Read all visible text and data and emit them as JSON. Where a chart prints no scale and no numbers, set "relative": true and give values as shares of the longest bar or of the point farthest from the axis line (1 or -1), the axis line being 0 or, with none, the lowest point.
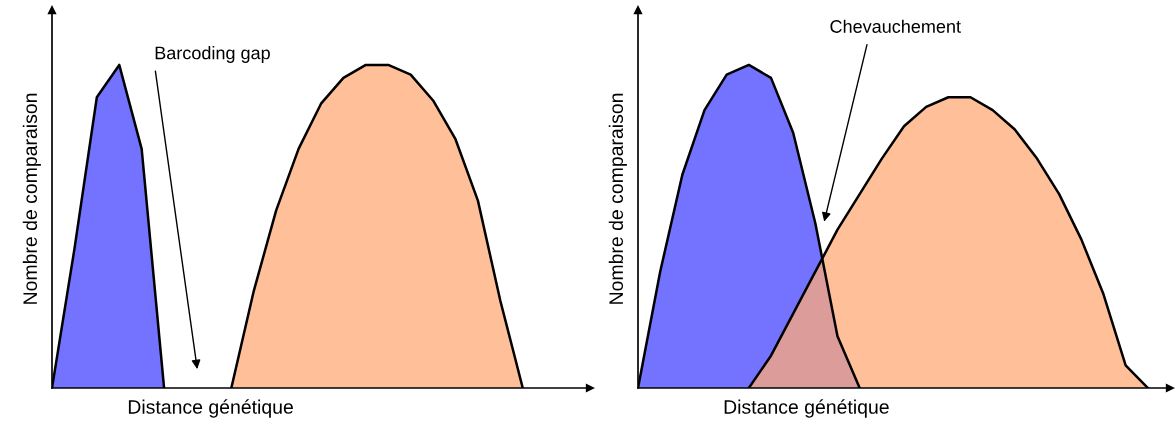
{
  "chart_data": [
    {
      "type": "area",
      "relative": true,
      "xlabel": "Distance génétique",
      "ylabel": "Nombre de comparaison",
      "grid": false,
      "legend": false,
      "categories": [
        null,
        null,
        null,
        null,
        null,
        null,
        null,
        null,
        null,
        null,
        null,
        null,
        null,
        null,
        null,
        null,
        null,
        null,
        null,
        null,
        null,
        null,
        null,
        null,
        null
      ],
      "series": [
        {
          "color": "#7373ff",
          "values": [
            0,
            0.43,
            0.9,
            1.0,
            0.74,
            0,
            null,
            null,
            null,
            null,
            null,
            null,
            null,
            null,
            null,
            null,
            null,
            null,
            null,
            null,
            null,
            null,
            null,
            null,
            null
          ]
        },
        {
          "color": "#ffaa77",
          "values": [
            null,
            null,
            null,
            null,
            null,
            null,
            null,
            null,
            0,
            0.3,
            0.55,
            0.74,
            0.88,
            0.96,
            1.0,
            1.0,
            0.97,
            0.89,
            0.77,
            0.58,
            0.27,
            0,
            null,
            null,
            null
          ]
        }
      ],
      "annotations": [
        "Barcoding gap"
      ]
    },
    {
      "type": "area",
      "relative": true,
      "xlabel": "Distance génétique",
      "ylabel": "Nombre de comparaison",
      "grid": false,
      "legend": false,
      "categories": [
        null,
        null,
        null,
        null,
        null,
        null,
        null,
        null,
        null,
        null,
        null,
        null,
        null,
        null,
        null,
        null,
        null,
        null,
        null,
        null,
        null,
        null,
        null,
        null,
        null
      ],
      "series": [
        {
          "color": "#7373ff",
          "values": [
            0,
            0.36,
            0.66,
            0.86,
            0.97,
            1.0,
            0.96,
            0.79,
            0.51,
            0.16,
            0,
            null,
            null,
            null,
            null,
            null,
            null,
            null,
            null,
            null,
            null,
            null,
            null,
            null,
            null
          ]
        },
        {
          "color": "#ffaa77",
          "values": [
            null,
            null,
            null,
            null,
            null,
            0,
            0.1,
            0.23,
            0.36,
            0.49,
            0.6,
            0.71,
            0.81,
            0.87,
            0.9,
            0.9,
            0.86,
            0.8,
            0.71,
            0.6,
            0.46,
            0.29,
            0.07,
            0,
            null
          ]
        }
      ],
      "annotations": [
        "Chevauchement"
      ]
    }
  ]
}
